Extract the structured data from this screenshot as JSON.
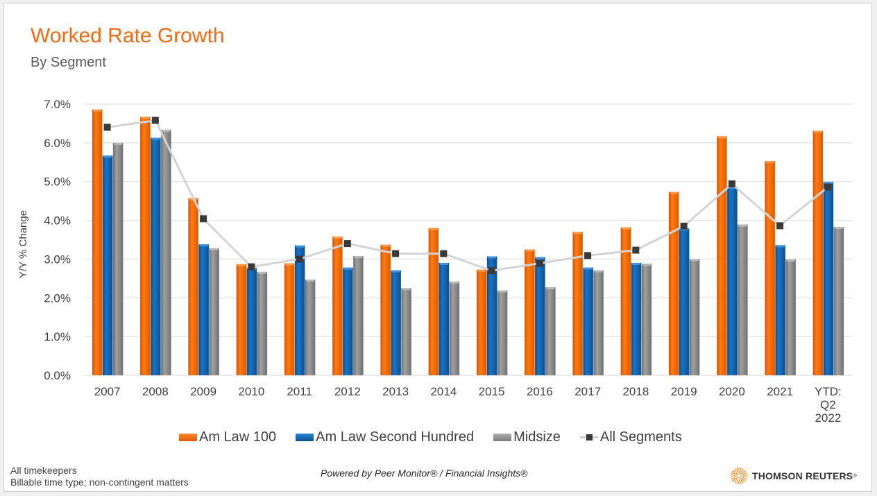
{
  "title": "Worked Rate Growth",
  "subtitle": "By Segment",
  "footer": {
    "note_line1": "All timekeepers",
    "note_line2": "Billable time type; non-contingent matters",
    "powered_by": "Powered by Peer Monitor® / Financial Insights®",
    "brand": "THOMSON REUTERS",
    "brand_mark": "®"
  },
  "colors": {
    "am_law_100": "#ff6a00",
    "am_law_second_hundred": "#0f62ae",
    "midsize": "#8c8c8c",
    "all_segments_line": "#d4d4d4",
    "all_segments_marker": "#3a3a3a",
    "title": "#f26a10"
  },
  "chart_data": {
    "type": "bar",
    "title": "Worked Rate Growth",
    "subtitle": "By Segment",
    "xlabel": "",
    "ylabel": "Y/Y % Change",
    "ylim": [
      0,
      7
    ],
    "yticks": [
      "0.0%",
      "1.0%",
      "2.0%",
      "3.0%",
      "4.0%",
      "5.0%",
      "6.0%",
      "7.0%"
    ],
    "grid": true,
    "legend_position": "bottom",
    "categories": [
      "2007",
      "2008",
      "2009",
      "2010",
      "2011",
      "2012",
      "2013",
      "2014",
      "2015",
      "2016",
      "2017",
      "2018",
      "2019",
      "2020",
      "2021",
      "YTD: Q2 2022"
    ],
    "category_label_lines": [
      [
        "2007"
      ],
      [
        "2008"
      ],
      [
        "2009"
      ],
      [
        "2010"
      ],
      [
        "2011"
      ],
      [
        "2012"
      ],
      [
        "2013"
      ],
      [
        "2014"
      ],
      [
        "2015"
      ],
      [
        "2016"
      ],
      [
        "2017"
      ],
      [
        "2018"
      ],
      [
        "2019"
      ],
      [
        "2020"
      ],
      [
        "2021"
      ],
      [
        "YTD:",
        "Q2",
        "2022"
      ]
    ],
    "series": [
      {
        "name": "Am Law 100",
        "kind": "bar",
        "values": [
          6.86,
          6.67,
          4.57,
          2.87,
          2.89,
          3.58,
          3.37,
          3.8,
          2.73,
          3.25,
          3.7,
          3.82,
          4.73,
          6.17,
          5.53,
          6.31
        ]
      },
      {
        "name": "Am Law Second Hundred",
        "kind": "bar",
        "values": [
          5.67,
          6.13,
          3.38,
          2.77,
          3.35,
          2.78,
          2.71,
          2.9,
          3.07,
          3.05,
          2.78,
          2.9,
          3.79,
          4.87,
          3.36,
          4.99
        ]
      },
      {
        "name": "Midsize",
        "kind": "bar",
        "values": [
          6.0,
          6.34,
          3.28,
          2.67,
          2.47,
          3.08,
          2.25,
          2.42,
          2.19,
          2.27,
          2.71,
          2.88,
          3.0,
          3.89,
          2.99,
          3.83
        ]
      },
      {
        "name": "All Segments",
        "kind": "line",
        "values": [
          6.4,
          6.58,
          4.04,
          2.8,
          3.0,
          3.4,
          3.14,
          3.14,
          2.7,
          2.89,
          3.09,
          3.23,
          3.85,
          4.94,
          3.86,
          4.86
        ]
      }
    ]
  }
}
